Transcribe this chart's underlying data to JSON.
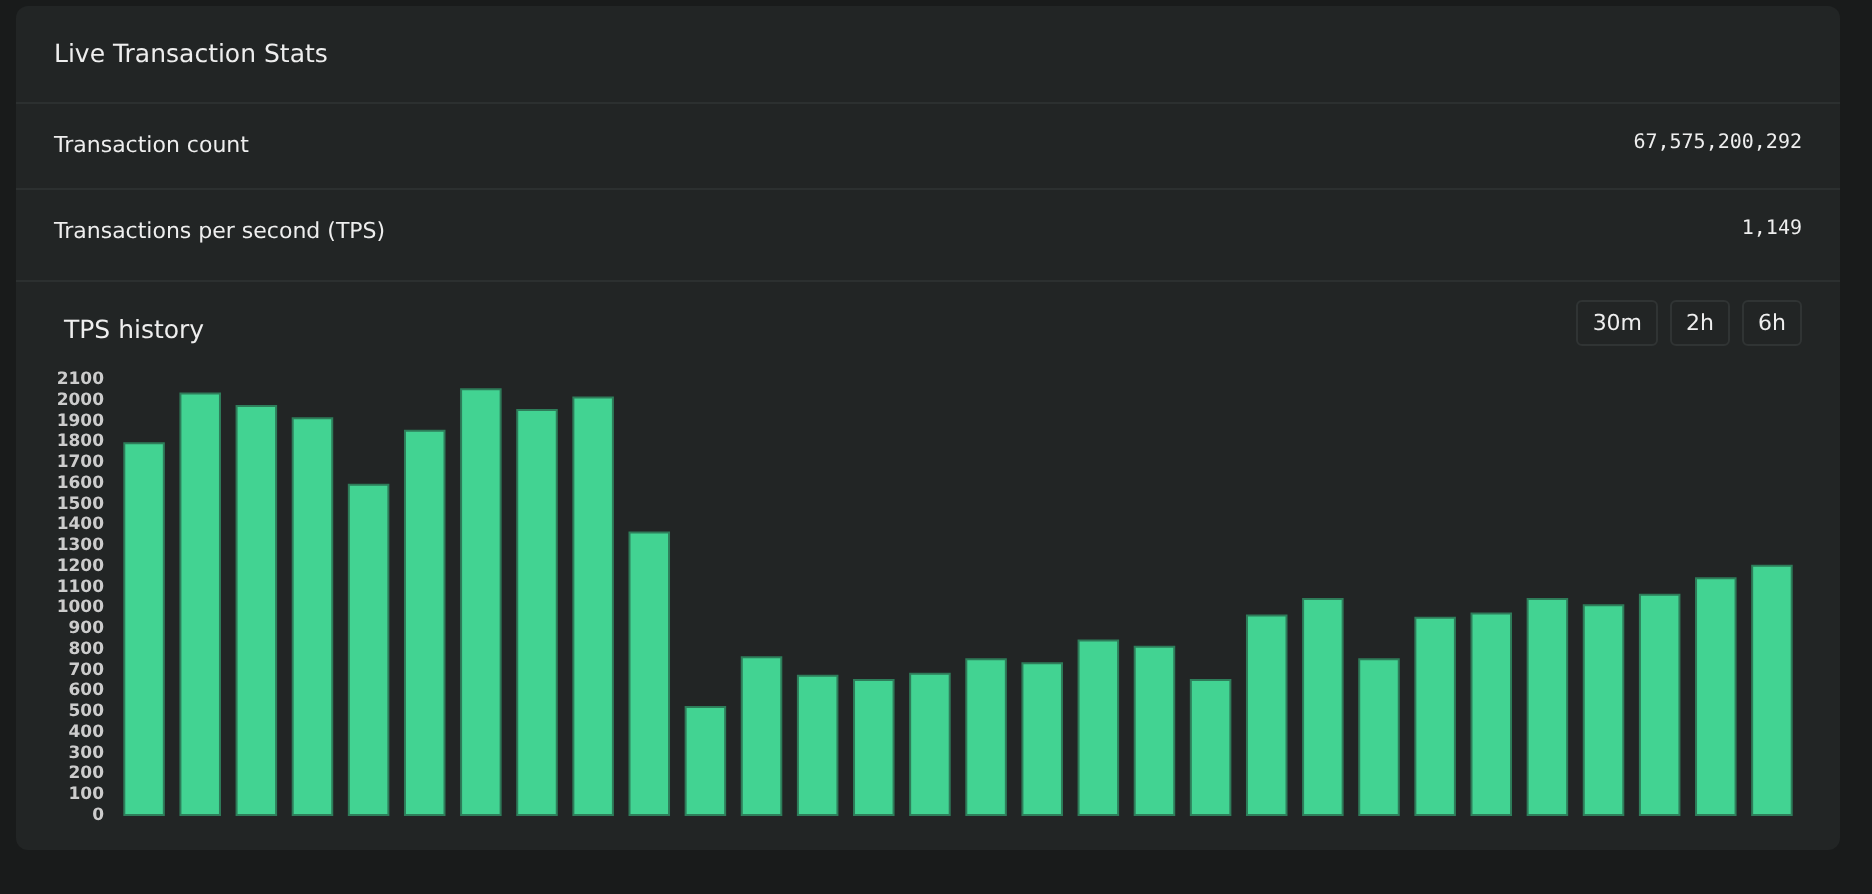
{
  "chart_data": [
    {
      "type": "other",
      "title": "Live Transaction Stats",
      "annotations": [
        "Transaction count",
        "67,575,200,292",
        "Transactions per second (TPS)",
        "1,149"
      ]
    },
    {
      "type": "bar",
      "title": "TPS history",
      "annotations": [
        "30m",
        "2h",
        "6h"
      ],
      "categories": [
        null,
        null,
        null,
        null,
        null,
        null,
        null,
        null,
        null,
        null,
        null,
        null,
        null,
        null,
        null,
        null,
        null,
        null,
        null,
        null,
        null,
        null,
        null,
        null,
        null,
        null,
        null,
        null,
        null,
        null
      ],
      "values": [
        1800,
        2040,
        1980,
        1920,
        1600,
        1860,
        2060,
        1960,
        2020,
        1370,
        530,
        770,
        680,
        660,
        690,
        760,
        740,
        850,
        820,
        660,
        970,
        1050,
        760,
        960,
        980,
        1050,
        1020,
        1070,
        1150,
        1210
      ],
      "color": "#42d392",
      "ylim": [
        0,
        2100
      ],
      "yticks": [
        0,
        100,
        200,
        300,
        400,
        500,
        600,
        700,
        800,
        900,
        1000,
        1100,
        1200,
        1300,
        1400,
        1500,
        1600,
        1700,
        1800,
        1900,
        2000,
        2100
      ]
    }
  ]
}
